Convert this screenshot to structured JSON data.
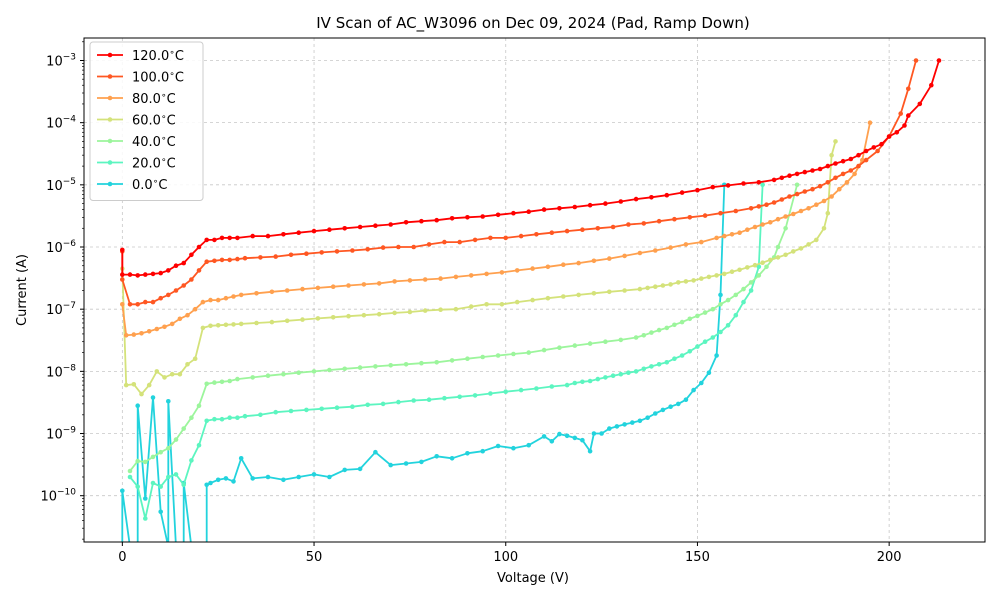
{
  "chart_data": {
    "type": "line",
    "title": "IV Scan of AC_W3096 on Dec 09, 2024 (Pad, Ramp Down)",
    "xlabel": "Voltage (V)",
    "ylabel": "Current (A)",
    "xlim": [
      -10,
      225
    ],
    "ylim": [
      1.8e-11,
      0.0023
    ],
    "yscale": "log",
    "grid": true,
    "legend_position": "top-left",
    "xticks": [
      0,
      50,
      100,
      150,
      200
    ],
    "xtick_labels": [
      "0",
      "50",
      "100",
      "150",
      "200"
    ],
    "yticks": [
      1e-10,
      1e-09,
      1e-08,
      1e-07,
      1e-06,
      1e-05,
      0.0001,
      0.001
    ],
    "ytick_labels": [
      {
        "base": "10",
        "exp": "−10"
      },
      {
        "base": "10",
        "exp": "−9"
      },
      {
        "base": "10",
        "exp": "−8"
      },
      {
        "base": "10",
        "exp": "−7"
      },
      {
        "base": "10",
        "exp": "−6"
      },
      {
        "base": "10",
        "exp": "−5"
      },
      {
        "base": "10",
        "exp": "−4"
      },
      {
        "base": "10",
        "exp": "−3"
      }
    ],
    "series": [
      {
        "name": "120.0$^\\circ$C",
        "label_main": "120.0",
        "label_unit": "C",
        "color": "#ff0000",
        "x": [
          213,
          211,
          208,
          205,
          204,
          202,
          200,
          198,
          196,
          194,
          192,
          190,
          188,
          186,
          184,
          182,
          180,
          178,
          176,
          174,
          172,
          170,
          166,
          162,
          158,
          154,
          150,
          146,
          142,
          138,
          134,
          130,
          126,
          122,
          118,
          114,
          110,
          106,
          102,
          98,
          94,
          90,
          86,
          82,
          78,
          74,
          70,
          66,
          62,
          58,
          54,
          50,
          46,
          42,
          38,
          34,
          30,
          28,
          26,
          24,
          22,
          20,
          18,
          16,
          14,
          12,
          10,
          8,
          6,
          4,
          2,
          0,
          0
        ],
        "y": [
          0.001,
          0.0004,
          0.0002,
          0.00013,
          9e-05,
          7e-05,
          6e-05,
          4.5e-05,
          4e-05,
          3.5e-05,
          3e-05,
          2.6e-05,
          2.4e-05,
          2.2e-05,
          2e-05,
          1.8e-05,
          1.7e-05,
          1.6e-05,
          1.5e-05,
          1.4e-05,
          1.3e-05,
          1.2e-05,
          1.1e-05,
          1.05e-05,
          9.8e-06,
          9.2e-06,
          8.2e-06,
          7.5e-06,
          6.8e-06,
          6.3e-06,
          5.9e-06,
          5.4e-06,
          5e-06,
          4.7e-06,
          4.4e-06,
          4.2e-06,
          4e-06,
          3.7e-06,
          3.5e-06,
          3.3e-06,
          3.1e-06,
          3e-06,
          2.9e-06,
          2.7e-06,
          2.6e-06,
          2.5e-06,
          2.3e-06,
          2.2e-06,
          2.1e-06,
          2e-06,
          1.9e-06,
          1.8e-06,
          1.7e-06,
          1.6e-06,
          1.5e-06,
          1.5e-06,
          1.4e-06,
          1.4e-06,
          1.4e-06,
          1.3e-06,
          1.3e-06,
          1e-06,
          7.5e-07,
          5.5e-07,
          5e-07,
          4.2e-07,
          3.8e-07,
          3.7e-07,
          3.6e-07,
          3.5e-07,
          3.6e-07,
          3.6e-07,
          9e-07
        ]
      },
      {
        "name": "100.0$^\\circ$C",
        "label_main": "100.0",
        "label_unit": "C",
        "color": "#ff5722",
        "x": [
          207,
          205,
          203,
          200,
          197,
          194,
          192,
          190,
          188,
          186,
          184,
          182,
          180,
          178,
          176,
          174,
          172,
          170,
          168,
          166,
          164,
          160,
          156,
          152,
          148,
          144,
          140,
          136,
          132,
          128,
          124,
          120,
          116,
          112,
          108,
          104,
          100,
          96,
          92,
          88,
          84,
          80,
          76,
          72,
          68,
          64,
          60,
          56,
          52,
          48,
          44,
          40,
          36,
          32,
          30,
          28,
          26,
          24,
          22,
          20,
          18,
          16,
          14,
          12,
          10,
          8,
          6,
          4,
          2,
          0,
          0
        ],
        "y": [
          0.001,
          0.00035,
          0.00014,
          6e-05,
          3.5e-05,
          2.5e-05,
          2e-05,
          1.7e-05,
          1.5e-05,
          1.3e-05,
          1.1e-05,
          9.5e-06,
          8.5e-06,
          7.8e-06,
          7.1e-06,
          6.5e-06,
          5.8e-06,
          5.2e-06,
          4.8e-06,
          4.5e-06,
          4.2e-06,
          3.8e-06,
          3.5e-06,
          3.2e-06,
          3e-06,
          2.8e-06,
          2.6e-06,
          2.4e-06,
          2.3e-06,
          2.1e-06,
          2e-06,
          1.9e-06,
          1.8e-06,
          1.7e-06,
          1.6e-06,
          1.5e-06,
          1.4e-06,
          1.4e-06,
          1.3e-06,
          1.2e-06,
          1.2e-06,
          1.1e-06,
          1e-06,
          1e-06,
          9.8e-07,
          9.2e-07,
          8.8e-07,
          8.5e-07,
          8.2e-07,
          7.8e-07,
          7.5e-07,
          7e-07,
          6.8e-07,
          6.6e-07,
          6.4e-07,
          6.2e-07,
          6.2e-07,
          6e-07,
          5.8e-07,
          4.2e-07,
          3e-07,
          2.4e-07,
          2e-07,
          1.7e-07,
          1.5e-07,
          1.3e-07,
          1.3e-07,
          1.2e-07,
          1.2e-07,
          3e-07,
          8.5e-07
        ]
      },
      {
        "name": "80.0$^\\circ$C",
        "label_main": "80.0",
        "label_unit": "C",
        "color": "#ffa04e",
        "x": [
          195,
          193,
          191,
          189,
          187,
          185,
          183,
          181,
          179,
          177,
          175,
          173,
          171,
          169,
          167,
          165,
          163,
          161,
          159,
          157,
          155,
          151,
          147,
          143,
          139,
          135,
          131,
          127,
          123,
          119,
          115,
          111,
          107,
          103,
          99,
          95,
          91,
          87,
          83,
          79,
          75,
          71,
          67,
          63,
          59,
          55,
          51,
          47,
          43,
          39,
          35,
          31,
          29,
          27,
          25,
          23,
          21,
          19,
          17,
          15,
          13,
          11,
          9,
          7,
          5,
          3,
          1,
          0
        ],
        "y": [
          0.0001,
          2.5e-05,
          1.5e-05,
          1.1e-05,
          8.5e-06,
          6.5e-06,
          5.5e-06,
          4.8e-06,
          4.2e-06,
          3.8e-06,
          3.4e-06,
          3.1e-06,
          2.8e-06,
          2.5e-06,
          2.3e-06,
          2.1e-06,
          1.9e-06,
          1.7e-06,
          1.6e-06,
          1.5e-06,
          1.4e-06,
          1.2e-06,
          1.1e-06,
          9.8e-07,
          8.8e-07,
          8e-07,
          7.2e-07,
          6.5e-07,
          6e-07,
          5.5e-07,
          5.2e-07,
          4.8e-07,
          4.5e-07,
          4.2e-07,
          3.9e-07,
          3.7e-07,
          3.5e-07,
          3.3e-07,
          3.1e-07,
          3e-07,
          2.9e-07,
          2.8e-07,
          2.6e-07,
          2.5e-07,
          2.4e-07,
          2.3e-07,
          2.2e-07,
          2.1e-07,
          2e-07,
          1.9e-07,
          1.8e-07,
          1.7e-07,
          1.6e-07,
          1.5e-07,
          1.4e-07,
          1.4e-07,
          1.3e-07,
          1e-07,
          8e-08,
          7e-08,
          5.8e-08,
          5.2e-08,
          4.8e-08,
          4.4e-08,
          4.1e-08,
          3.9e-08,
          3.8e-08,
          1.2e-07
        ]
      },
      {
        "name": "60.0$^\\circ$C",
        "label_main": "60.0",
        "label_unit": "C",
        "color": "#d4e27a",
        "x": [
          186,
          185,
          184,
          183,
          181,
          179,
          177,
          175,
          173,
          171,
          169,
          167,
          165,
          163,
          161,
          159,
          157,
          155,
          153,
          151,
          149,
          147,
          145,
          143,
          141,
          139,
          137,
          135,
          131,
          127,
          123,
          119,
          115,
          111,
          107,
          103,
          99,
          95,
          91,
          87,
          83,
          79,
          75,
          71,
          67,
          63,
          59,
          55,
          51,
          47,
          43,
          39,
          35,
          31,
          29,
          27,
          25,
          23,
          21,
          19,
          17,
          15,
          13,
          11,
          9,
          7,
          5,
          3,
          1,
          0
        ],
        "y": [
          5e-05,
          3e-05,
          3.5e-06,
          2e-06,
          1.3e-06,
          1.1e-06,
          9.5e-07,
          8.5e-07,
          7.5e-07,
          6.8e-07,
          6.2e-07,
          5.6e-07,
          5.1e-07,
          4.7e-07,
          4.3e-07,
          4e-07,
          3.7e-07,
          3.5e-07,
          3.3e-07,
          3.1e-07,
          2.9e-07,
          2.8e-07,
          2.7e-07,
          2.5e-07,
          2.4e-07,
          2.3e-07,
          2.2e-07,
          2.1e-07,
          2e-07,
          1.9e-07,
          1.8e-07,
          1.7e-07,
          1.6e-07,
          1.5e-07,
          1.4e-07,
          1.3e-07,
          1.2e-07,
          1.2e-07,
          1.1e-07,
          1e-07,
          9.8e-08,
          9.5e-08,
          9e-08,
          8.7e-08,
          8.3e-08,
          8e-08,
          7.7e-08,
          7.4e-08,
          7.1e-08,
          6.8e-08,
          6.5e-08,
          6.2e-08,
          6e-08,
          5.8e-08,
          5.7e-08,
          5.6e-08,
          5.5e-08,
          5.4e-08,
          5e-08,
          1.6e-08,
          1.3e-08,
          9e-09,
          9e-09,
          8e-09,
          1e-08,
          6e-09,
          4.3e-09,
          6.2e-09,
          6e-09,
          4.5e-07
        ]
      },
      {
        "name": "40.0$^\\circ$C",
        "label_main": "40.0",
        "label_unit": "C",
        "color": "#9cf59c",
        "x": [
          176,
          173,
          171,
          170,
          168,
          166,
          164,
          162,
          160,
          158,
          156,
          154,
          152,
          150,
          148,
          146,
          144,
          142,
          140,
          138,
          136,
          134,
          130,
          126,
          122,
          118,
          114,
          110,
          106,
          102,
          98,
          94,
          90,
          86,
          82,
          78,
          74,
          70,
          66,
          62,
          58,
          54,
          50,
          46,
          42,
          38,
          34,
          30,
          28,
          26,
          24,
          22,
          20,
          18,
          16,
          14,
          12,
          10,
          8,
          6,
          4,
          2
        ],
        "y": [
          1e-05,
          2e-06,
          1e-06,
          6.8e-07,
          4.8e-07,
          3.5e-07,
          2.7e-07,
          2.1e-07,
          1.7e-07,
          1.4e-07,
          1.2e-07,
          1e-07,
          8.8e-08,
          7.8e-08,
          7e-08,
          6.2e-08,
          5.6e-08,
          5e-08,
          4.6e-08,
          4.2e-08,
          3.8e-08,
          3.5e-08,
          3.2e-08,
          3e-08,
          2.8e-08,
          2.6e-08,
          2.4e-08,
          2.2e-08,
          2e-08,
          1.9e-08,
          1.8e-08,
          1.7e-08,
          1.6e-08,
          1.5e-08,
          1.4e-08,
          1.35e-08,
          1.3e-08,
          1.25e-08,
          1.2e-08,
          1.15e-08,
          1.1e-08,
          1.05e-08,
          1e-08,
          9.5e-09,
          9e-09,
          8.5e-09,
          8e-09,
          7.5e-09,
          7e-09,
          6.8e-09,
          6.6e-09,
          6.3e-09,
          2.8e-09,
          1.8e-09,
          1.2e-09,
          8e-10,
          5.8e-10,
          5e-10,
          4.2e-10,
          3.5e-10,
          3.6e-10,
          2.5e-10
        ]
      },
      {
        "name": "20.0$^\\circ$C",
        "label_main": "20.0",
        "label_unit": "C",
        "color": "#5cf5c0",
        "x": [
          167,
          166,
          164,
          162,
          160,
          158,
          156,
          154,
          152,
          150,
          148,
          146,
          144,
          142,
          140,
          138,
          136,
          134,
          132,
          130,
          128,
          126,
          124,
          122,
          120,
          118,
          116,
          112,
          108,
          104,
          100,
          96,
          92,
          88,
          84,
          80,
          76,
          72,
          68,
          64,
          60,
          56,
          52,
          48,
          44,
          40,
          36,
          32,
          30,
          28,
          26,
          24,
          22,
          20,
          18,
          16,
          14,
          12,
          10,
          8,
          6,
          4,
          2
        ],
        "y": [
          1e-05,
          4.8e-07,
          2e-07,
          1.3e-07,
          8e-08,
          5.5e-08,
          4.3e-08,
          3.5e-08,
          3e-08,
          2.5e-08,
          2.1e-08,
          1.8e-08,
          1.6e-08,
          1.4e-08,
          1.3e-08,
          1.2e-08,
          1.1e-08,
          1e-08,
          9.5e-09,
          9e-09,
          8.5e-09,
          8e-09,
          7.5e-09,
          7e-09,
          6.8e-09,
          6.5e-09,
          6e-09,
          5.7e-09,
          5.3e-09,
          5e-09,
          4.7e-09,
          4.4e-09,
          4.1e-09,
          3.9e-09,
          3.7e-09,
          3.5e-09,
          3.4e-09,
          3.2e-09,
          3e-09,
          2.9e-09,
          2.7e-09,
          2.6e-09,
          2.5e-09,
          2.4e-09,
          2.3e-09,
          2.2e-09,
          2e-09,
          1.9e-09,
          1.8e-09,
          1.8e-09,
          1.7e-09,
          1.7e-09,
          1.6e-09,
          6.5e-10,
          3.7e-10,
          1.5e-10,
          2.2e-10,
          2e-10,
          1.4e-10,
          1.6e-10,
          4.3e-11,
          1.4e-10,
          2e-10
        ]
      },
      {
        "name": "0.0$^\\circ$C",
        "label_main": "0.0",
        "label_unit": "C",
        "color": "#22d3dd",
        "x": [
          157,
          156,
          155,
          153,
          151,
          149,
          147,
          145,
          143,
          141,
          139,
          137,
          135,
          133,
          131,
          129,
          127,
          125,
          123,
          122,
          120,
          118,
          116,
          114,
          112,
          110,
          106,
          102,
          98,
          94,
          90,
          86,
          82,
          78,
          74,
          70,
          66,
          62,
          58,
          54,
          50,
          46,
          42,
          38,
          34,
          31,
          29,
          27,
          25,
          23,
          22,
          22,
          20,
          18,
          16,
          16,
          14,
          12,
          12,
          10,
          8,
          6,
          4,
          4,
          2,
          0,
          0
        ],
        "y": [
          1e-05,
          1.7e-07,
          1.8e-08,
          9.5e-09,
          6.5e-09,
          5e-09,
          3.5e-09,
          3e-09,
          2.7e-09,
          2.4e-09,
          2.1e-09,
          1.8e-09,
          1.6e-09,
          1.5e-09,
          1.4e-09,
          1.3e-09,
          1.2e-09,
          1e-09,
          1e-09,
          5.2e-10,
          7.8e-10,
          8.5e-10,
          9.2e-10,
          9.8e-10,
          7.5e-10,
          9e-10,
          6.5e-10,
          5.8e-10,
          6.3e-10,
          5.2e-10,
          4.8e-10,
          4e-10,
          4.3e-10,
          3.5e-10,
          3.3e-10,
          3.1e-10,
          5e-10,
          2.7e-10,
          2.6e-10,
          2e-10,
          2.2e-10,
          2e-10,
          1.8e-10,
          2e-10,
          1.9e-10,
          4e-10,
          1.7e-10,
          1.9e-10,
          1.8e-10,
          1.6e-10,
          1.5e-10,
          1.5e-11,
          1.5e-11,
          1.5e-11,
          1.6e-10,
          1.5e-11,
          1.5e-11,
          3.3e-09,
          1.5e-11,
          5.5e-11,
          3.8e-09,
          9e-11,
          2.8e-09,
          1.5e-11,
          1.5e-11,
          1.2e-10,
          1.5e-11
        ]
      }
    ]
  }
}
